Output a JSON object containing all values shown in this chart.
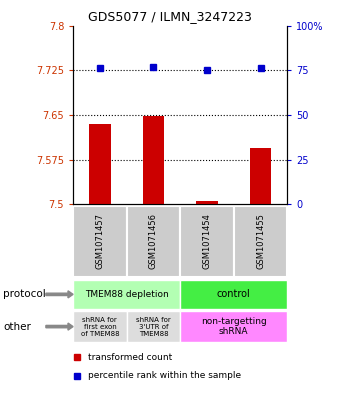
{
  "title": "GDS5077 / ILMN_3247223",
  "samples": [
    "GSM1071457",
    "GSM1071456",
    "GSM1071454",
    "GSM1071455"
  ],
  "bar_values": [
    7.635,
    7.648,
    7.506,
    7.595
  ],
  "bar_bottom": 7.5,
  "dot_values": [
    76,
    77,
    75,
    76
  ],
  "ylim_left": [
    7.5,
    7.8
  ],
  "ylim_right": [
    0,
    100
  ],
  "yticks_left": [
    7.5,
    7.575,
    7.65,
    7.725,
    7.8
  ],
  "yticks_right": [
    0,
    25,
    50,
    75,
    100
  ],
  "ytick_labels_left": [
    "7.5",
    "7.575",
    "7.65",
    "7.725",
    "7.8"
  ],
  "ytick_labels_right": [
    "0",
    "25",
    "50",
    "75",
    "100%"
  ],
  "hlines": [
    7.575,
    7.65,
    7.725
  ],
  "bar_color": "#cc0000",
  "dot_color": "#0000cc",
  "protocol_labels": [
    "TMEM88 depletion",
    "control"
  ],
  "protocol_color_depletion": "#b3ffb3",
  "protocol_color_control": "#44ee44",
  "other_labels": [
    "shRNA for\nfirst exon\nof TMEM88",
    "shRNA for\n3'UTR of\nTMEM88",
    "non-targetting\nshRNA"
  ],
  "other_color_gray": "#dddddd",
  "other_color_pink": "#ff88ff",
  "legend_bar_label": "transformed count",
  "legend_dot_label": "percentile rank within the sample",
  "protocol_text": "protocol",
  "other_text": "other",
  "left_label_color": "#cc3300",
  "right_label_color": "#0000cc",
  "arrow_color": "#888888"
}
